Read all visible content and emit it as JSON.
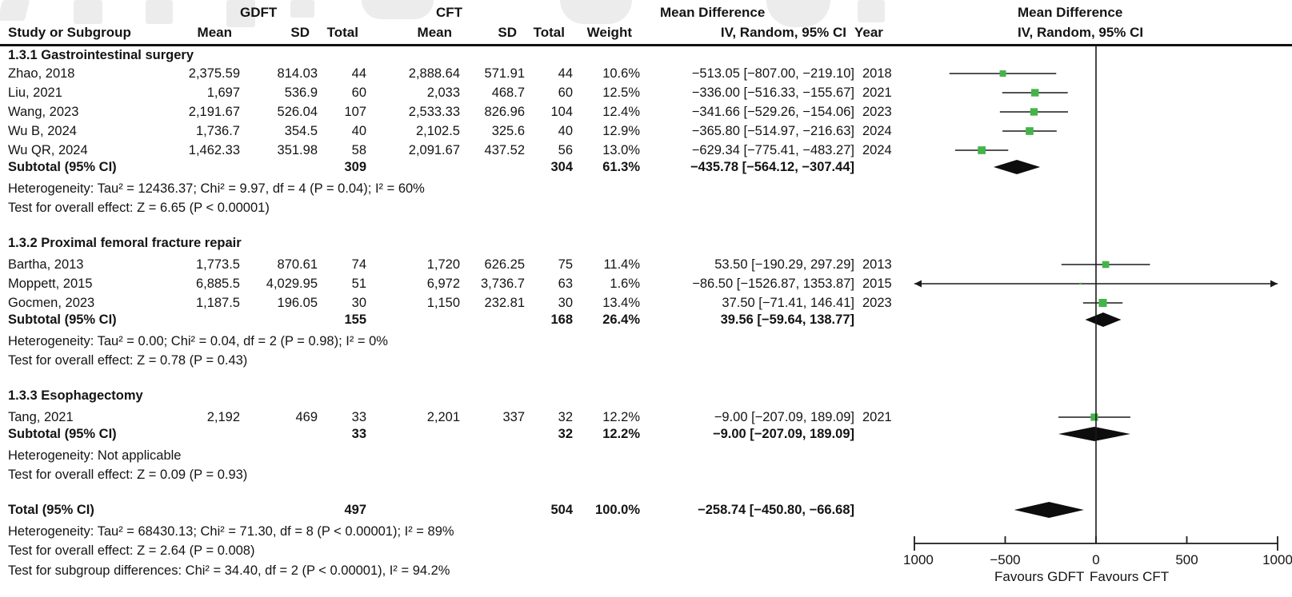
{
  "chart_data": {
    "type": "forest",
    "header": {
      "group1": "GDFT",
      "group2": "CFT",
      "md_label": "Mean Difference",
      "study": "Study or Subgroup",
      "mean": "Mean",
      "sd": "SD",
      "total": "Total",
      "weight": "Weight",
      "ci_method": "IV, Random, 95% CI",
      "year": "Year"
    },
    "axis": {
      "min": -1000,
      "max": 1000,
      "ticks": [
        "-1000",
        "-500",
        "0",
        "500",
        "1000"
      ],
      "tick_values": [
        -1000,
        -500,
        0,
        500,
        1000
      ],
      "favours_left": "Favours GDFT",
      "favours_right": "Favours CFT"
    },
    "colors": {
      "marker": "#44b449",
      "line": "#1a1a1a",
      "diamond": "#0d0d0d",
      "text": "#141414"
    },
    "groups": [
      {
        "label": "1.3.1 Gastrointestinal surgery",
        "studies": [
          {
            "study": "Zhao, 2018",
            "g_mean": "2,375.59",
            "g_sd": "814.03",
            "g_total": "44",
            "c_mean": "2,888.64",
            "c_sd": "571.91",
            "c_total": "44",
            "weight": "10.6%",
            "ci_text": "-513.05 [-807.00, -219.10]",
            "year": "2018",
            "est": -513.05,
            "lo": -807.0,
            "hi": -219.1,
            "weight_val": 10.6
          },
          {
            "study": "Liu, 2021",
            "g_mean": "1,697",
            "g_sd": "536.9",
            "g_total": "60",
            "c_mean": "2,033",
            "c_sd": "468.7",
            "c_total": "60",
            "weight": "12.5%",
            "ci_text": "-336.00 [-516.33, -155.67]",
            "year": "2021",
            "est": -336.0,
            "lo": -516.33,
            "hi": -155.67,
            "weight_val": 12.5
          },
          {
            "study": "Wang, 2023",
            "g_mean": "2,191.67",
            "g_sd": "526.04",
            "g_total": "107",
            "c_mean": "2,533.33",
            "c_sd": "826.96",
            "c_total": "104",
            "weight": "12.4%",
            "ci_text": "-341.66 [-529.26, -154.06]",
            "year": "2023",
            "est": -341.66,
            "lo": -529.26,
            "hi": -154.06,
            "weight_val": 12.4
          },
          {
            "study": "Wu B, 2024",
            "g_mean": "1,736.7",
            "g_sd": "354.5",
            "g_total": "40",
            "c_mean": "2,102.5",
            "c_sd": "325.6",
            "c_total": "40",
            "weight": "12.9%",
            "ci_text": "-365.80 [-514.97, -216.63]",
            "year": "2024",
            "est": -365.8,
            "lo": -514.97,
            "hi": -216.63,
            "weight_val": 12.9
          },
          {
            "study": "Wu QR, 2024",
            "g_mean": "1,462.33",
            "g_sd": "351.98",
            "g_total": "58",
            "c_mean": "2,091.67",
            "c_sd": "437.52",
            "c_total": "56",
            "weight": "13.0%",
            "ci_text": "-629.34 [-775.41, -483.27]",
            "year": "2024",
            "est": -629.34,
            "lo": -775.41,
            "hi": -483.27,
            "weight_val": 13.0
          }
        ],
        "subtotal": {
          "label": "Subtotal (95% CI)",
          "g_total": "309",
          "c_total": "304",
          "weight": "61.3%",
          "ci_text": "-435.78 [-564.12, -307.44]",
          "est": -435.78,
          "lo": -564.12,
          "hi": -307.44
        },
        "heterogeneity": "Heterogeneity: Tau² = 12436.37; Chi² = 9.97, df = 4 (P = 0.04); I² = 60%",
        "overall_effect": "Test for overall effect: Z = 6.65 (P < 0.00001)"
      },
      {
        "label": "1.3.2 Proximal femoral fracture repair",
        "studies": [
          {
            "study": "Bartha, 2013",
            "g_mean": "1,773.5",
            "g_sd": "870.61",
            "g_total": "74",
            "c_mean": "1,720",
            "c_sd": "626.25",
            "c_total": "75",
            "weight": "11.4%",
            "ci_text": "53.50 [-190.29, 297.29]",
            "year": "2013",
            "est": 53.5,
            "lo": -190.29,
            "hi": 297.29,
            "weight_val": 11.4
          },
          {
            "study": "Moppett, 2015",
            "g_mean": "6,885.5",
            "g_sd": "4,029.95",
            "g_total": "51",
            "c_mean": "6,972",
            "c_sd": "3,736.7",
            "c_total": "63",
            "weight": "1.6%",
            "ci_text": "-86.50 [-1526.87, 1353.87]",
            "year": "2015",
            "est": -86.5,
            "lo": -1526.87,
            "hi": 1353.87,
            "weight_val": 1.6
          },
          {
            "study": "Gocmen, 2023",
            "g_mean": "1,187.5",
            "g_sd": "196.05",
            "g_total": "30",
            "c_mean": "1,150",
            "c_sd": "232.81",
            "c_total": "30",
            "weight": "13.4%",
            "ci_text": "37.50 [-71.41, 146.41]",
            "year": "2023",
            "est": 37.5,
            "lo": -71.41,
            "hi": 146.41,
            "weight_val": 13.4
          }
        ],
        "subtotal": {
          "label": "Subtotal (95% CI)",
          "g_total": "155",
          "c_total": "168",
          "weight": "26.4%",
          "ci_text": "39.56 [-59.64, 138.77]",
          "est": 39.56,
          "lo": -59.64,
          "hi": 138.77
        },
        "heterogeneity": "Heterogeneity: Tau² = 0.00; Chi² = 0.04, df = 2 (P = 0.98); I² = 0%",
        "overall_effect": "Test for overall effect: Z = 0.78 (P = 0.43)"
      },
      {
        "label": "1.3.3 Esophagectomy",
        "studies": [
          {
            "study": "Tang, 2021",
            "g_mean": "2,192",
            "g_sd": "469",
            "g_total": "33",
            "c_mean": "2,201",
            "c_sd": "337",
            "c_total": "32",
            "weight": "12.2%",
            "ci_text": "-9.00 [-207.09, 189.09]",
            "year": "2021",
            "est": -9.0,
            "lo": -207.09,
            "hi": 189.09,
            "weight_val": 12.2
          }
        ],
        "subtotal": {
          "label": "Subtotal (95% CI)",
          "g_total": "33",
          "c_total": "32",
          "weight": "12.2%",
          "ci_text": "-9.00 [-207.09, 189.09]",
          "est": -9.0,
          "lo": -207.09,
          "hi": 189.09
        },
        "heterogeneity": "Heterogeneity: Not applicable",
        "overall_effect": "Test for overall effect: Z = 0.09 (P = 0.93)"
      }
    ],
    "total": {
      "label": "Total (95% CI)",
      "g_total": "497",
      "c_total": "504",
      "weight": "100.0%",
      "ci_text": "-258.74 [-450.80, -66.68]",
      "est": -258.74,
      "lo": -450.8,
      "hi": -66.68
    },
    "footer_lines": [
      "Heterogeneity: Tau² = 68430.13; Chi² = 71.30, df = 8 (P < 0.00001); I² = 89%",
      "Test for overall effect: Z = 2.64 (P = 0.008)",
      "Test for subgroup differences: Chi² = 34.40, df = 2 (P < 0.00001), I² = 94.2%"
    ]
  }
}
